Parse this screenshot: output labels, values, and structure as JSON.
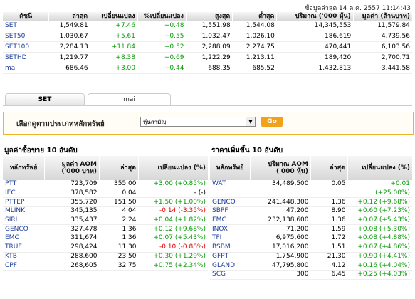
{
  "updated": "ข้อมูลล่าสุด 14 ต.ค. 2557 11:14:43",
  "index_table": {
    "headers": [
      "ดัชนี",
      "ล่าสุด",
      "เปลี่ยนแปลง",
      "%เปลี่ยนแปลง",
      "สูงสุด",
      "ต่ำสุด",
      "ปริมาณ ('000 หุ้น)",
      "มูลค่า (ล้านบาท)"
    ],
    "rows": [
      {
        "name": "SET",
        "last": "1,549.81",
        "chg": "+7.46",
        "pct": "+0.48",
        "high": "1,551.98",
        "low": "1,544.08",
        "vol": "14,345,553",
        "val": "11,579.84",
        "dir": "up"
      },
      {
        "name": "SET50",
        "last": "1,030.67",
        "chg": "+5.61",
        "pct": "+0.55",
        "high": "1,032.47",
        "low": "1,026.10",
        "vol": "186,619",
        "val": "4,739.56",
        "dir": "up"
      },
      {
        "name": "SET100",
        "last": "2,284.13",
        "chg": "+11.84",
        "pct": "+0.52",
        "high": "2,288.09",
        "low": "2,274.75",
        "vol": "470,441",
        "val": "6,103.56",
        "dir": "up"
      },
      {
        "name": "SETHD",
        "last": "1,219.77",
        "chg": "+8.38",
        "pct": "+0.69",
        "high": "1,222.29",
        "low": "1,213.11",
        "vol": "189,420",
        "val": "2,700.71",
        "dir": "up"
      },
      {
        "name": "mai",
        "last": "686.46",
        "chg": "+3.00",
        "pct": "+0.44",
        "high": "688.35",
        "low": "685.52",
        "vol": "1,432,813",
        "val": "3,441.58",
        "dir": "up"
      }
    ]
  },
  "tabs": [
    "SET",
    "mai"
  ],
  "selector": {
    "label": "เลือกดูตามประเภทหลักทรัพย์",
    "value": "หุ้นสามัญ",
    "go": "Go"
  },
  "top_value": {
    "title": "มูลค่าซื้อขาย 10 อันดับ",
    "headers": [
      "หลักทรัพย์",
      "มูลค่า AOM ('000 บาท)",
      "ล่าสุด",
      "เปลี่ยนแปลง (%)"
    ],
    "rows": [
      {
        "sym": "PTT",
        "val": "723,709",
        "last": "355.00",
        "chg": "+3.00 (+0.85%)",
        "dir": "up"
      },
      {
        "sym": "IEC",
        "val": "378,582",
        "last": "0.04",
        "chg": "- (-)",
        "dir": "flat"
      },
      {
        "sym": "PTTEP",
        "val": "355,720",
        "last": "151.50",
        "chg": "+1.50 (+1.00%)",
        "dir": "up"
      },
      {
        "sym": "MLINK",
        "val": "345,135",
        "last": "4.04",
        "chg": "-0.14 (-3.35%)",
        "dir": "dn"
      },
      {
        "sym": "SIRI",
        "val": "335,437",
        "last": "2.24",
        "chg": "+0.04 (+1.82%)",
        "dir": "up"
      },
      {
        "sym": "GENCO",
        "val": "327,478",
        "last": "1.36",
        "chg": "+0.12 (+9.68%)",
        "dir": "up"
      },
      {
        "sym": "EMC",
        "val": "311,674",
        "last": "1.36",
        "chg": "+0.07 (+5.43%)",
        "dir": "up"
      },
      {
        "sym": "TRUE",
        "val": "298,424",
        "last": "11.30",
        "chg": "-0.10 (-0.88%)",
        "dir": "dn"
      },
      {
        "sym": "KTB",
        "val": "288,600",
        "last": "23.50",
        "chg": "+0.30 (+1.29%)",
        "dir": "up"
      },
      {
        "sym": "CPF",
        "val": "268,605",
        "last": "32.75",
        "chg": "+0.75 (+2.34%)",
        "dir": "up"
      }
    ]
  },
  "top_gainers": {
    "title": "ราคาเพิ่มขึ้น 10 อันดับ",
    "headers": [
      "หลักทรัพย์",
      "ปริมาณ AOM ('000 หุ้น)",
      "ล่าสุด",
      "เปลี่ยนแปลง (%)"
    ],
    "rows": [
      {
        "sym": "WAT",
        "val": "34,489,500",
        "last": "0.05",
        "chg": "+0.01",
        "chg2": "(+25.00%)",
        "dir": "up"
      },
      {
        "sym": "GENCO",
        "val": "241,448,300",
        "last": "1.36",
        "chg": "+0.12 (+9.68%)",
        "dir": "up"
      },
      {
        "sym": "SBPF",
        "val": "47,200",
        "last": "8.90",
        "chg": "+0.60 (+7.23%)",
        "dir": "up"
      },
      {
        "sym": "EMC",
        "val": "232,138,600",
        "last": "1.36",
        "chg": "+0.07 (+5.43%)",
        "dir": "up"
      },
      {
        "sym": "INOX",
        "val": "71,200",
        "last": "1.59",
        "chg": "+0.08 (+5.30%)",
        "dir": "up"
      },
      {
        "sym": "TFI",
        "val": "6,975,600",
        "last": "1.72",
        "chg": "+0.08 (+4.88%)",
        "dir": "up"
      },
      {
        "sym": "BSBM",
        "val": "17,016,200",
        "last": "1.51",
        "chg": "+0.07 (+4.86%)",
        "dir": "up"
      },
      {
        "sym": "GFPT",
        "val": "1,754,900",
        "last": "21.30",
        "chg": "+0.90 (+4.41%)",
        "dir": "up"
      },
      {
        "sym": "GLAND",
        "val": "47,795,800",
        "last": "4.12",
        "chg": "+0.16 (+4.04%)",
        "dir": "up"
      },
      {
        "sym": "SCG",
        "val": "300",
        "last": "6.45",
        "chg": "+0.25 (+4.03%)",
        "dir": "up"
      }
    ]
  }
}
